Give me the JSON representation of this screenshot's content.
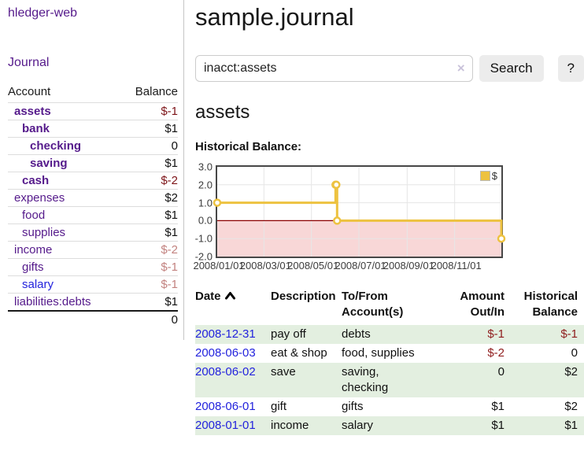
{
  "colors": {
    "link_purple": "#551a8b",
    "link_blue": "#2323dd",
    "negative_strong": "#7d1418",
    "negative_soft": "#c2827f",
    "negative": "#8f1d1d",
    "row_stripe_green": "#e3efe0",
    "chart_line_gold": "#edc240",
    "chart_negative_fill": "#f8d7d7",
    "chart_zero_line": "#8b0000",
    "grid_line": "#e6e6e6"
  },
  "sidebar": {
    "brand": "hledger-web",
    "nav_journal": "Journal",
    "accounts": {
      "header_account": "Account",
      "header_balance": "Balance",
      "rows": [
        {
          "account": "assets",
          "balance": "$-1",
          "depth": 1,
          "bold": true
        },
        {
          "account": "bank",
          "balance": "$1",
          "depth": 2,
          "bold": true
        },
        {
          "account": "checking",
          "balance": "0",
          "depth": 3,
          "bold": true
        },
        {
          "account": "saving",
          "balance": "$1",
          "depth": 3,
          "bold": true
        },
        {
          "account": "cash",
          "balance": "$-2",
          "depth": 2,
          "bold": true
        },
        {
          "account": "expenses",
          "balance": "$2",
          "depth": 1,
          "bold": false
        },
        {
          "account": "food",
          "balance": "$1",
          "depth": 2,
          "bold": false
        },
        {
          "account": "supplies",
          "balance": "$1",
          "depth": 2,
          "bold": false
        },
        {
          "account": "income",
          "balance": "$-2",
          "depth": 1,
          "bold": false
        },
        {
          "account": "gifts",
          "balance": "$-1",
          "depth": 2,
          "bold": false
        },
        {
          "account": "salary",
          "balance": "$-1",
          "depth": 2,
          "bold": false,
          "unvisited": true
        },
        {
          "account": "liabilities:debts",
          "balance": "$1",
          "depth": 1,
          "bold": false
        }
      ],
      "total": "0"
    }
  },
  "main": {
    "title": "sample.journal",
    "account_heading": "assets"
  },
  "search": {
    "value": "inacct:assets",
    "clear_glyph": "×",
    "button_label": "Search",
    "help_label": "?"
  },
  "chart_data": {
    "type": "line",
    "title": "Historical Balance:",
    "step": true,
    "xlim": [
      "2008-01-01",
      "2008-12-31"
    ],
    "ylim": [
      -2.0,
      3.0
    ],
    "y_ticks": [
      "3.0",
      "2.0",
      "1.0",
      "0.0",
      "-1.0",
      "-2.0"
    ],
    "x_ticks": [
      "2008/01/01",
      "2008/03/01",
      "2008/05/01",
      "2008/07/01",
      "2008/09/01",
      "2008/11/01"
    ],
    "legend": [
      {
        "label": "$"
      }
    ],
    "series": [
      {
        "name": "$",
        "points": [
          [
            "2008-01-01",
            1
          ],
          [
            "2008-06-01",
            2
          ],
          [
            "2008-06-02",
            2
          ],
          [
            "2008-06-03",
            0
          ],
          [
            "2008-12-31",
            -1
          ]
        ]
      }
    ]
  },
  "register": {
    "headers": {
      "date": "Date",
      "description": "Description",
      "accounts": "To/From Account(s)",
      "amount": "Amount Out/In",
      "balance": "Historical Balance"
    },
    "rows": [
      {
        "date": "2008-12-31",
        "description": "pay off",
        "accounts": "debts",
        "amount": "$-1",
        "balance": "$-1"
      },
      {
        "date": "2008-06-03",
        "description": "eat & shop",
        "accounts": "food, supplies",
        "amount": "$-2",
        "balance": "0"
      },
      {
        "date": "2008-06-02",
        "description": "save",
        "accounts": "saving, checking",
        "amount": "0",
        "balance": "$2"
      },
      {
        "date": "2008-06-01",
        "description": "gift",
        "accounts": "gifts",
        "amount": "$1",
        "balance": "$2"
      },
      {
        "date": "2008-01-01",
        "description": "income",
        "accounts": "salary",
        "amount": "$1",
        "balance": "$1"
      }
    ]
  }
}
